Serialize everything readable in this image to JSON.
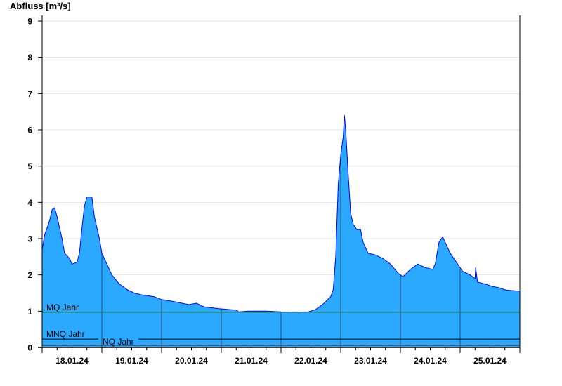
{
  "chart_data": {
    "type": "area",
    "ylabel": "Abfluss [m³/s]",
    "ylim": [
      0,
      9
    ],
    "yticks": [
      0,
      1,
      2,
      3,
      4,
      5,
      6,
      7,
      8,
      9
    ],
    "xlim": [
      "2024-01-18T00:00",
      "2024-01-26T00:00"
    ],
    "xtick_labels": [
      {
        "date": "2024-01-18T12:00",
        "label": "18.01.24"
      },
      {
        "date": "2024-01-19T12:00",
        "label": "19.01.24"
      },
      {
        "date": "2024-01-20T12:00",
        "label": "20.01.24"
      },
      {
        "date": "2024-01-21T12:00",
        "label": "21.01.24"
      },
      {
        "date": "2024-01-22T12:00",
        "label": "22.01.24"
      },
      {
        "date": "2024-01-23T12:00",
        "label": "23.01.24"
      },
      {
        "date": "2024-01-24T12:00",
        "label": "24.01.24"
      },
      {
        "date": "2024-01-25T12:00",
        "label": "25.01.24"
      }
    ],
    "grid": true,
    "colors": {
      "fill": "#2ba8ff",
      "line": "#0000ff",
      "mq": "#1a7a1a",
      "ref": "#000000",
      "grid": "#e6e6e6",
      "dayline": "#1f4f7a"
    },
    "reference_lines": [
      {
        "name": "MQ Jahr",
        "value": 0.97
      },
      {
        "name": "MNQ Jahr",
        "value": 0.23
      },
      {
        "name": "NQ Jahr",
        "value": 0.06
      }
    ],
    "series": [
      {
        "points": [
          [
            "2024-01-18T00:00",
            2.7
          ],
          [
            "2024-01-18T01:00",
            3.1
          ],
          [
            "2024-01-18T03:00",
            3.5
          ],
          [
            "2024-01-18T04:00",
            3.8
          ],
          [
            "2024-01-18T05:00",
            3.85
          ],
          [
            "2024-01-18T06:00",
            3.6
          ],
          [
            "2024-01-18T08:00",
            3.0
          ],
          [
            "2024-01-18T09:00",
            2.6
          ],
          [
            "2024-01-18T11:00",
            2.45
          ],
          [
            "2024-01-18T12:00",
            2.3
          ],
          [
            "2024-01-18T14:00",
            2.35
          ],
          [
            "2024-01-18T15:00",
            2.6
          ],
          [
            "2024-01-18T16:00",
            3.3
          ],
          [
            "2024-01-18T17:00",
            3.9
          ],
          [
            "2024-01-18T18:00",
            4.15
          ],
          [
            "2024-01-18T20:00",
            4.15
          ],
          [
            "2024-01-18T21:00",
            3.6
          ],
          [
            "2024-01-18T23:00",
            3.0
          ],
          [
            "2024-01-19T00:00",
            2.6
          ],
          [
            "2024-01-19T02:00",
            2.3
          ],
          [
            "2024-01-19T04:00",
            2.0
          ],
          [
            "2024-01-19T07:00",
            1.75
          ],
          [
            "2024-01-19T10:00",
            1.6
          ],
          [
            "2024-01-19T13:00",
            1.5
          ],
          [
            "2024-01-19T16:00",
            1.45
          ],
          [
            "2024-01-19T21:00",
            1.4
          ],
          [
            "2024-01-20T00:00",
            1.32
          ],
          [
            "2024-01-20T06:00",
            1.25
          ],
          [
            "2024-01-20T11:00",
            1.18
          ],
          [
            "2024-01-20T14:00",
            1.22
          ],
          [
            "2024-01-20T17:00",
            1.12
          ],
          [
            "2024-01-20T23:00",
            1.07
          ],
          [
            "2024-01-21T06:00",
            1.03
          ],
          [
            "2024-01-21T07:00",
            0.98
          ],
          [
            "2024-01-21T11:00",
            1.0
          ],
          [
            "2024-01-21T18:00",
            1.0
          ],
          [
            "2024-01-22T00:00",
            0.98
          ],
          [
            "2024-01-22T06:00",
            0.97
          ],
          [
            "2024-01-22T11:00",
            0.98
          ],
          [
            "2024-01-22T14:00",
            1.05
          ],
          [
            "2024-01-22T17:00",
            1.2
          ],
          [
            "2024-01-22T20:00",
            1.4
          ],
          [
            "2024-01-22T21:00",
            1.6
          ],
          [
            "2024-01-22T22:00",
            2.5
          ],
          [
            "2024-01-22T23:00",
            4.5
          ],
          [
            "2024-01-23T00:00",
            5.3
          ],
          [
            "2024-01-23T01:00",
            5.8
          ],
          [
            "2024-01-23T01:30",
            6.4
          ],
          [
            "2024-01-23T02:00",
            6.0
          ],
          [
            "2024-01-23T03:00",
            4.8
          ],
          [
            "2024-01-23T04:00",
            3.7
          ],
          [
            "2024-01-23T05:00",
            3.4
          ],
          [
            "2024-01-23T06:30",
            3.25
          ],
          [
            "2024-01-23T08:00",
            3.25
          ],
          [
            "2024-01-23T09:00",
            2.9
          ],
          [
            "2024-01-23T11:00",
            2.6
          ],
          [
            "2024-01-23T14:00",
            2.55
          ],
          [
            "2024-01-23T17:00",
            2.45
          ],
          [
            "2024-01-23T20:00",
            2.3
          ],
          [
            "2024-01-23T23:00",
            2.05
          ],
          [
            "2024-01-24T01:00",
            1.95
          ],
          [
            "2024-01-24T04:00",
            2.15
          ],
          [
            "2024-01-24T07:00",
            2.3
          ],
          [
            "2024-01-24T10:00",
            2.2
          ],
          [
            "2024-01-24T13:00",
            2.15
          ],
          [
            "2024-01-24T14:00",
            2.3
          ],
          [
            "2024-01-24T15:30",
            2.9
          ],
          [
            "2024-01-24T17:00",
            3.05
          ],
          [
            "2024-01-24T18:00",
            2.9
          ],
          [
            "2024-01-24T20:00",
            2.6
          ],
          [
            "2024-01-24T23:00",
            2.3
          ],
          [
            "2024-01-25T01:00",
            2.1
          ],
          [
            "2024-01-25T04:00",
            2.0
          ],
          [
            "2024-01-25T06:00",
            1.9
          ],
          [
            "2024-01-25T06:15",
            2.2
          ],
          [
            "2024-01-25T07:00",
            1.8
          ],
          [
            "2024-01-25T10:00",
            1.75
          ],
          [
            "2024-01-25T13:00",
            1.68
          ],
          [
            "2024-01-25T15:30",
            1.65
          ],
          [
            "2024-01-25T18:30",
            1.58
          ],
          [
            "2024-01-26T00:00",
            1.55
          ]
        ]
      }
    ]
  }
}
